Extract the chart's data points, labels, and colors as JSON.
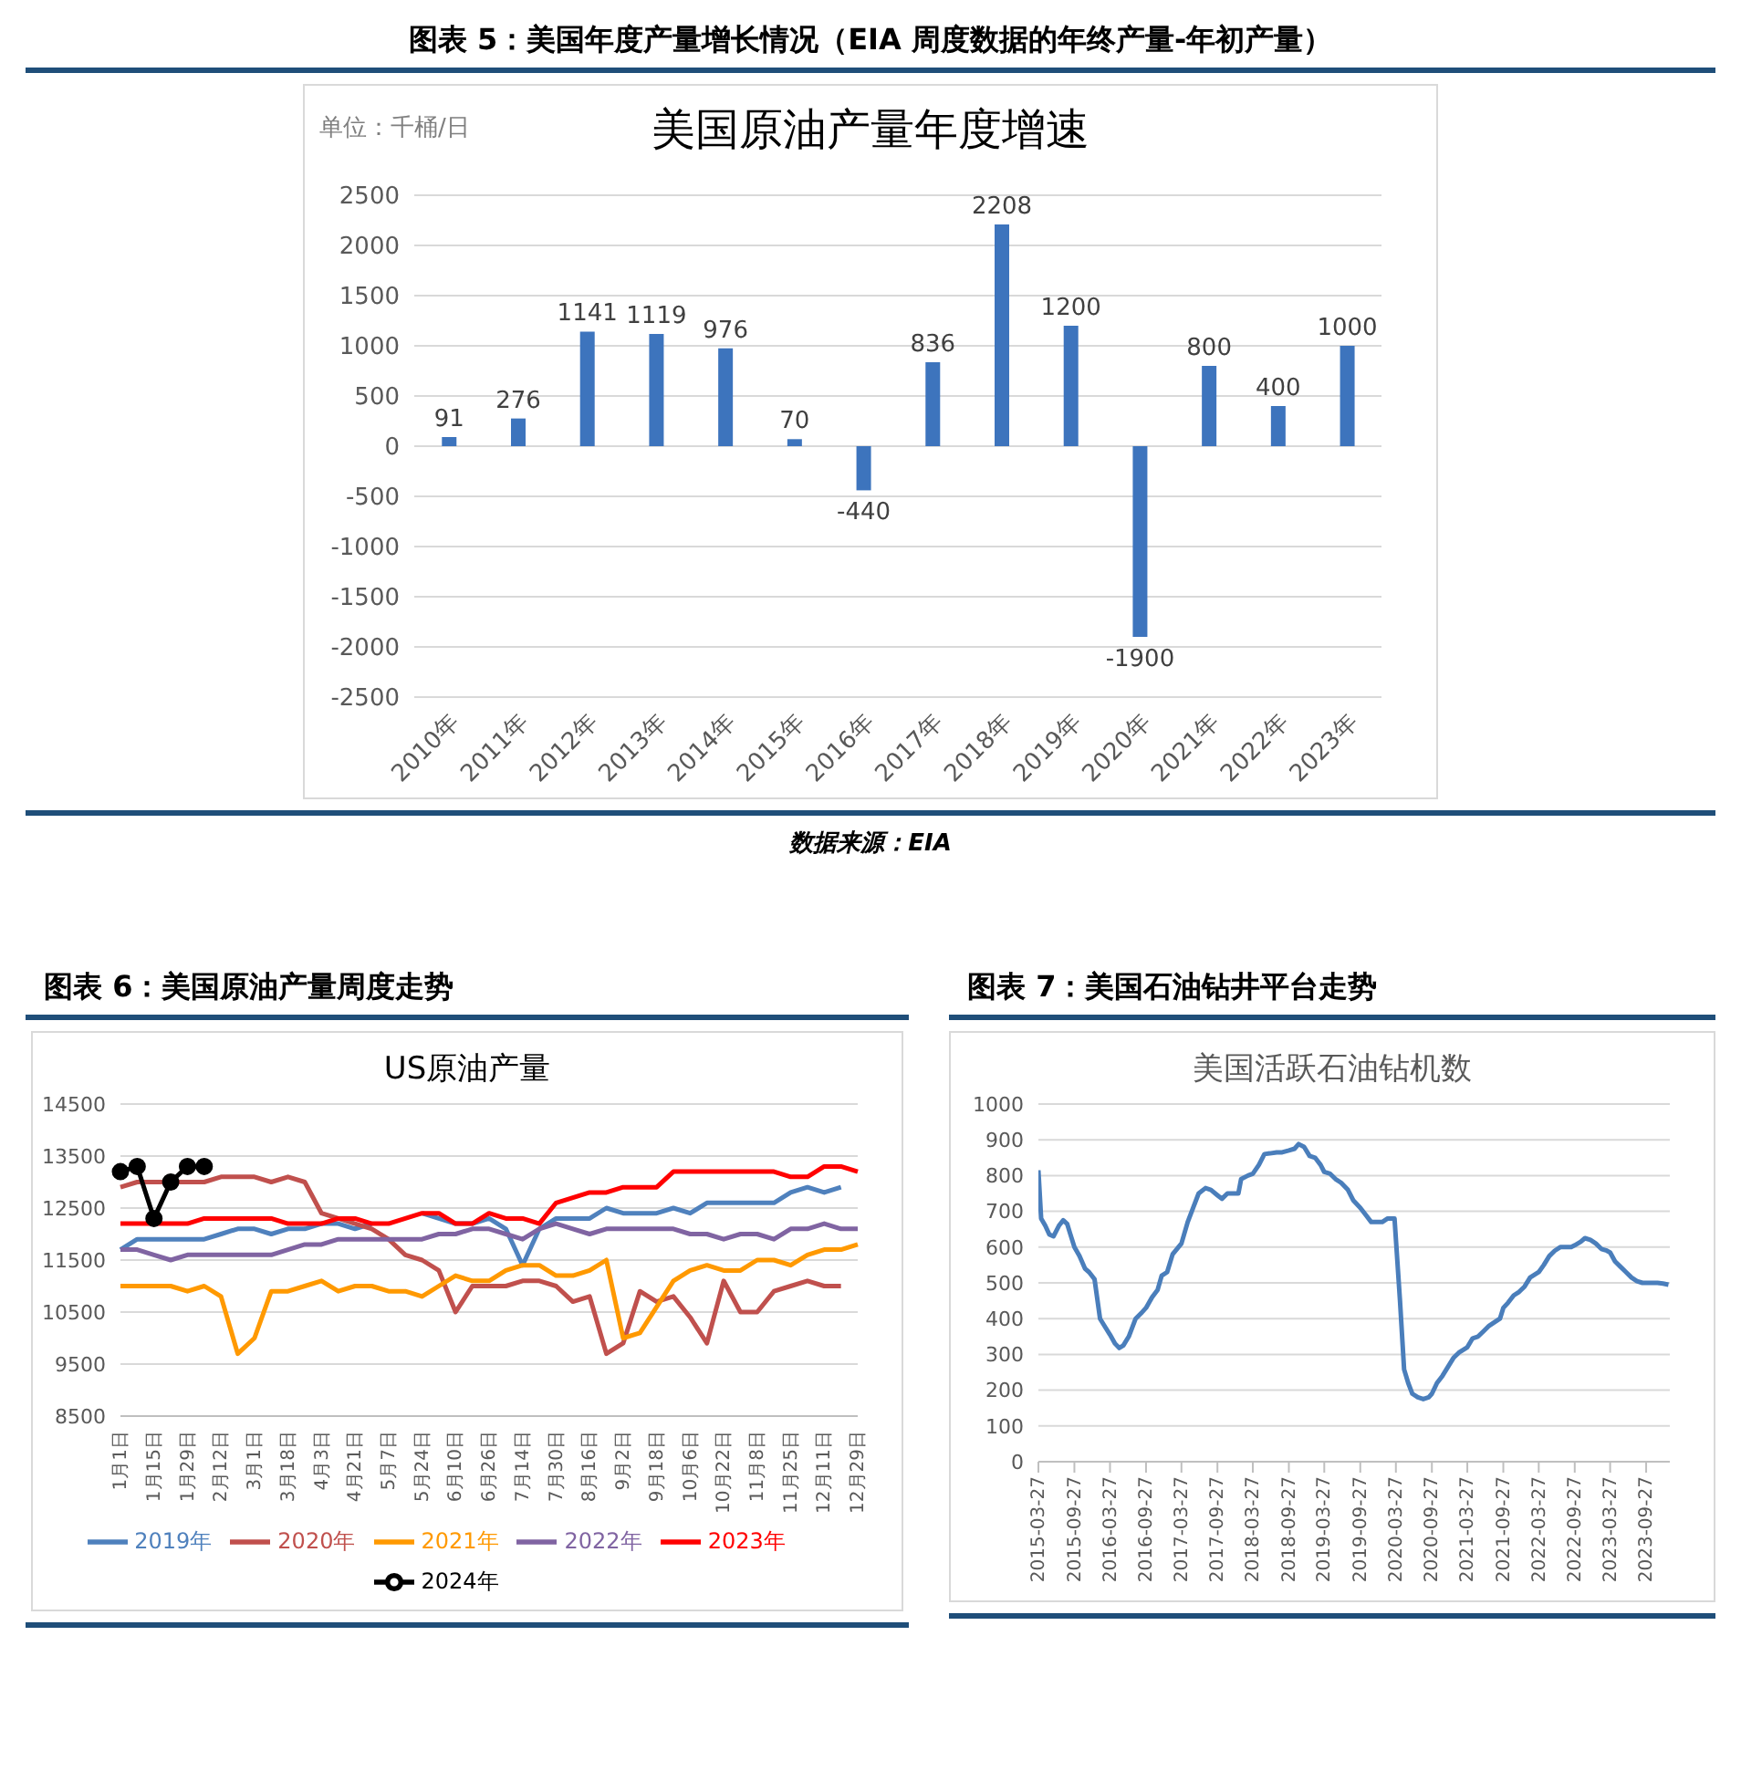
{
  "chart_data": [
    {
      "type": "bar",
      "title": "图表 5：美国年度产量增长情况（EIA 周度数据的年终产量-年初产量）",
      "subtitle": "美国原油产量年度增速",
      "ylabel": "单位：千桶/日",
      "annotations": [
        "数据来源：EIA"
      ],
      "categories": [
        "2010年",
        "2011年",
        "2012年",
        "2013年",
        "2014年",
        "2015年",
        "2016年",
        "2017年",
        "2018年",
        "2019年",
        "2020年",
        "2021年",
        "2022年",
        "2023年"
      ],
      "values": [
        91,
        276,
        1141,
        1119,
        976,
        70,
        -440,
        836,
        2208,
        1200,
        -1900,
        800,
        400,
        1000
      ],
      "color": "#3d74bd",
      "ylim": [
        -2500,
        2500
      ],
      "yticks": [
        -2500,
        -2000,
        -1500,
        -1000,
        -500,
        0,
        500,
        1000,
        1500,
        2000,
        2500
      ],
      "grid": "y",
      "data_labels": true
    },
    {
      "type": "line",
      "title": "图表 6：美国原油产量周度走势",
      "subtitle": "US原油产量",
      "categories": [
        "1月1日",
        null,
        "1月15日",
        null,
        "1月29日",
        null,
        "2月12日",
        null,
        "3月1日",
        null,
        "3月18日",
        null,
        "4月3日",
        null,
        "4月21日",
        null,
        "5月7日",
        null,
        "5月24日",
        null,
        "6月10日",
        null,
        "6月26日",
        null,
        "7月14日",
        null,
        "7月30日",
        null,
        "8月16日",
        null,
        "9月2日",
        null,
        "9月18日",
        null,
        "10月6日",
        null,
        "10月22日",
        null,
        "11月8日",
        null,
        "11月25日",
        null,
        "12月11日",
        null,
        "12月29日"
      ],
      "series": [
        {
          "name": "2019年",
          "color": "#4f81bd",
          "values": [
            11700,
            11900,
            11900,
            11900,
            11900,
            11900,
            12000,
            12100,
            12100,
            12000,
            12100,
            12100,
            12200,
            12200,
            12100,
            12200,
            null,
            null,
            12400,
            12300,
            12200,
            12200,
            12300,
            12100,
            11400,
            12100,
            12300,
            12300,
            12300,
            12500,
            12400,
            12400,
            12400,
            12500,
            12400,
            12600,
            12600,
            12600,
            12600,
            12600,
            12800,
            12900,
            12800,
            12900,
            null
          ]
        },
        {
          "name": "2020年",
          "color": "#c0504d",
          "values": [
            12900,
            13000,
            13000,
            13000,
            13000,
            13000,
            13100,
            13100,
            13100,
            13000,
            13100,
            13000,
            12400,
            12300,
            12200,
            12100,
            11900,
            11600,
            11500,
            11300,
            10500,
            11000,
            11000,
            11000,
            11100,
            11100,
            11000,
            10700,
            10800,
            9700,
            9900,
            10900,
            10700,
            10800,
            10400,
            9900,
            11100,
            10500,
            10500,
            10900,
            11000,
            11100,
            11000,
            11000,
            null
          ]
        },
        {
          "name": "2021年",
          "color": "#ff9900",
          "values": [
            11000,
            11000,
            11000,
            11000,
            10900,
            11000,
            10800,
            9700,
            10000,
            10900,
            10900,
            11000,
            11100,
            10900,
            11000,
            11000,
            10900,
            10900,
            10800,
            11000,
            11200,
            11100,
            11100,
            11300,
            11400,
            11400,
            11200,
            11200,
            11300,
            11500,
            10000,
            10100,
            10600,
            11100,
            11300,
            11400,
            11300,
            11300,
            11500,
            11500,
            11400,
            11600,
            11700,
            11700,
            11800
          ]
        },
        {
          "name": "2022年",
          "color": "#8064a2",
          "values": [
            11700,
            11700,
            11600,
            11500,
            11600,
            11600,
            11600,
            11600,
            11600,
            11600,
            11700,
            11800,
            11800,
            11900,
            11900,
            11900,
            11900,
            11900,
            11900,
            12000,
            12000,
            12100,
            12100,
            12000,
            11900,
            12100,
            12200,
            12100,
            12000,
            12100,
            12100,
            12100,
            12100,
            12100,
            12000,
            12000,
            11900,
            12000,
            12000,
            11900,
            12100,
            12100,
            12200,
            12100,
            12100
          ]
        },
        {
          "name": "2023年",
          "color": "#ff0000",
          "values": [
            12200,
            12200,
            12200,
            12200,
            12200,
            12300,
            12300,
            12300,
            12300,
            12300,
            12200,
            12200,
            12200,
            12300,
            12300,
            12200,
            12200,
            12300,
            12400,
            12400,
            12200,
            12200,
            12400,
            12300,
            12300,
            12200,
            12600,
            12700,
            12800,
            12800,
            12900,
            12900,
            12900,
            13200,
            13200,
            13200,
            13200,
            13200,
            13200,
            13200,
            13100,
            13100,
            13300,
            13300,
            13200
          ]
        },
        {
          "name": "2024年",
          "color": "#000000",
          "marker": "circle",
          "values": [
            13200,
            13300,
            12300,
            13000,
            13300,
            13300,
            null,
            null,
            null,
            null,
            null,
            null,
            null,
            null,
            null,
            null,
            null,
            null,
            null,
            null,
            null,
            null,
            null,
            null,
            null,
            null,
            null,
            null,
            null,
            null,
            null,
            null,
            null,
            null,
            null,
            null,
            null,
            null,
            null,
            null,
            null,
            null,
            null,
            null,
            null
          ]
        }
      ],
      "ylim": [
        8500,
        14500
      ],
      "yticks": [
        8500,
        9500,
        10500,
        11500,
        12500,
        13500,
        14500
      ],
      "grid": "y",
      "legend": "bottom"
    },
    {
      "type": "line",
      "title": "图表 7：美国石油钻井平台走势",
      "subtitle": "美国活跃石油钻机数",
      "x": [
        "2015-03-27",
        "2015-04-10",
        "2015-05-01",
        "2015-05-22",
        "2015-06-12",
        "2015-07-10",
        "2015-08-01",
        "2015-08-21",
        "2015-09-04",
        "2015-09-27",
        "2015-10-23",
        "2015-11-20",
        "2015-12-11",
        "2016-01-08",
        "2016-02-05",
        "2016-03-04",
        "2016-03-27",
        "2016-04-22",
        "2016-05-13",
        "2016-06-03",
        "2016-07-01",
        "2016-08-05",
        "2016-09-02",
        "2016-09-27",
        "2016-10-28",
        "2016-11-25",
        "2016-12-16",
        "2017-01-13",
        "2017-02-10",
        "2017-03-27",
        "2017-04-28",
        "2017-05-26",
        "2017-06-23",
        "2017-07-28",
        "2017-08-25",
        "2017-09-27",
        "2017-10-20",
        "2017-11-17",
        "2017-12-15",
        "2018-01-12",
        "2018-01-26",
        "2018-03-02",
        "2018-03-27",
        "2018-04-27",
        "2018-05-25",
        "2018-06-22",
        "2018-07-27",
        "2018-08-24",
        "2018-09-27",
        "2018-10-26",
        "2018-11-16",
        "2018-12-14",
        "2019-01-11",
        "2019-02-08",
        "2019-03-08",
        "2019-03-27",
        "2019-04-26",
        "2019-05-24",
        "2019-06-21",
        "2019-07-26",
        "2019-08-23",
        "2019-09-27",
        "2019-10-25",
        "2019-11-22",
        "2019-12-20",
        "2020-01-17",
        "2020-02-14",
        "2020-03-20",
        "2020-04-17",
        "2020-05-08",
        "2020-05-29",
        "2020-06-19",
        "2020-07-17",
        "2020-08-14",
        "2020-09-11",
        "2020-09-27",
        "2020-10-23",
        "2020-11-20",
        "2020-12-18",
        "2021-01-15",
        "2021-02-12",
        "2021-03-27",
        "2021-04-23",
        "2021-05-21",
        "2021-06-18",
        "2021-07-16",
        "2021-08-13",
        "2021-09-10",
        "2021-09-27",
        "2021-10-22",
        "2021-11-19",
        "2021-12-17",
        "2022-01-14",
        "2022-02-11",
        "2022-03-27",
        "2022-04-22",
        "2022-05-20",
        "2022-06-17",
        "2022-07-15",
        "2022-08-12",
        "2022-09-09",
        "2022-09-27",
        "2022-10-28",
        "2022-11-18",
        "2022-12-16",
        "2023-01-13",
        "2023-02-10",
        "2023-03-10",
        "2023-03-27",
        "2023-04-21",
        "2023-05-19",
        "2023-06-16",
        "2023-07-14",
        "2023-08-11",
        "2023-09-08",
        "2023-09-27",
        "2023-10-27",
        "2023-11-24",
        "2023-12-22",
        "2024-01-19"
      ],
      "series": [
        {
          "color": "#4a7ebb",
          "values": [
            815,
            680,
            660,
            635,
            630,
            660,
            675,
            665,
            640,
            600,
            575,
            540,
            530,
            510,
            400,
            375,
            355,
            330,
            318,
            325,
            350,
            400,
            415,
            430,
            460,
            480,
            520,
            530,
            580,
            610,
            670,
            710,
            750,
            765,
            760,
            745,
            735,
            750,
            750,
            750,
            790,
            800,
            805,
            830,
            860,
            862,
            865,
            865,
            870,
            875,
            888,
            880,
            855,
            850,
            830,
            810,
            805,
            790,
            780,
            760,
            730,
            710,
            690,
            670,
            670,
            670,
            680,
            680,
            450,
            258,
            220,
            190,
            180,
            175,
            180,
            190,
            220,
            240,
            265,
            290,
            305,
            320,
            345,
            350,
            365,
            380,
            390,
            400,
            430,
            445,
            465,
            475,
            490,
            515,
            530,
            550,
            575,
            590,
            600,
            600,
            600,
            605,
            615,
            625,
            620,
            610,
            595,
            590,
            585,
            560,
            545,
            530,
            515,
            505,
            500,
            500,
            500,
            500,
            498,
            495
          ]
        }
      ],
      "xlim": [
        "2015-03-27",
        "2024-01-26"
      ],
      "xticks": [
        "2015-03-27",
        "2015-09-27",
        "2016-03-27",
        "2016-09-27",
        "2017-03-27",
        "2017-09-27",
        "2018-03-27",
        "2018-09-27",
        "2019-03-27",
        "2019-09-27",
        "2020-03-27",
        "2020-09-27",
        "2021-03-27",
        "2021-09-27",
        "2022-03-27",
        "2022-09-27",
        "2023-03-27",
        "2023-09-27"
      ],
      "ylim": [
        0,
        1000
      ],
      "yticks": [
        0,
        100,
        200,
        300,
        400,
        500,
        600,
        700,
        800,
        900,
        1000
      ],
      "grid": "y"
    }
  ]
}
